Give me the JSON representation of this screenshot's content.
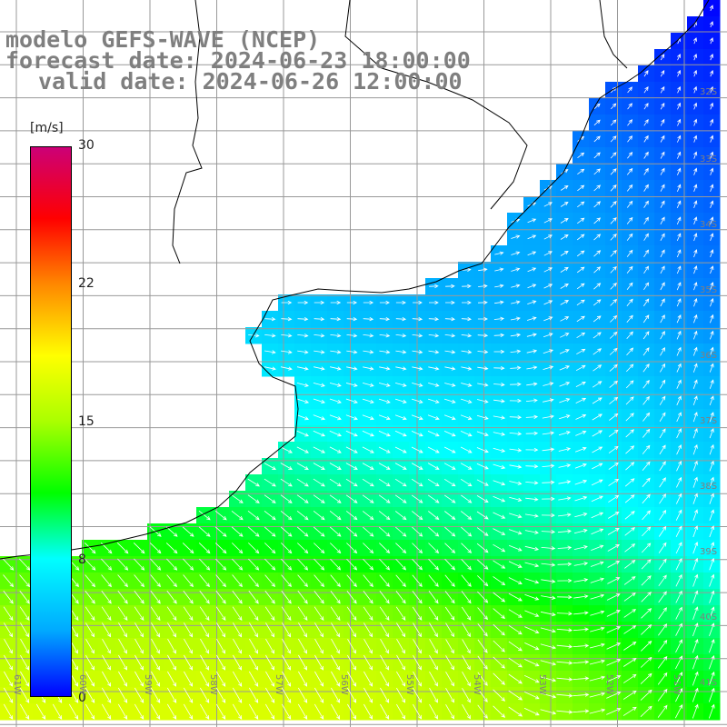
{
  "title": {
    "line1": "modelo GEFS-WAVE (NCEP)",
    "line2": "forecast date: 2024-06-23 18:00:00",
    "line3": "valid date: 2024-06-26 12:00:00"
  },
  "colorbar": {
    "unit": "[m/s]",
    "ticks": [
      "30",
      "22",
      "15",
      "8",
      "0"
    ],
    "colors": [
      "#0000ff",
      "#00aaff",
      "#00ffff",
      "#00ff00",
      "#aaff00",
      "#ffff00",
      "#ff8800",
      "#ff0000",
      "#cc0077"
    ]
  },
  "map": {
    "land_color": "#ffffff",
    "coast_color": "#000000",
    "grid_color": "#999999",
    "vector_color": "#ffffff",
    "lon_labels": [
      "61W",
      "60W",
      "59W",
      "58W",
      "57W",
      "56W",
      "55W",
      "54W",
      "53W",
      "52W",
      "51W"
    ],
    "lat_labels": [
      "32S",
      "33S",
      "34S",
      "35S",
      "36S",
      "37S",
      "38S",
      "39S",
      "40S",
      "41S"
    ]
  }
}
